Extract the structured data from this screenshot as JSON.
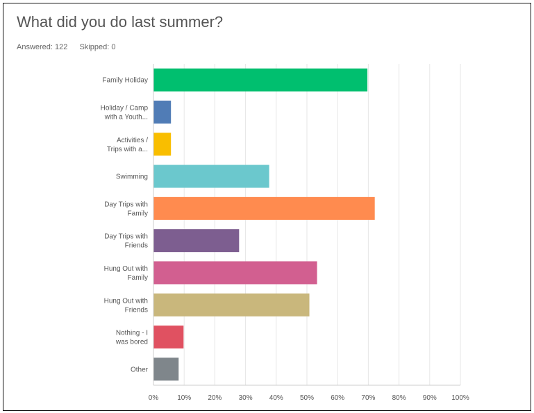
{
  "question": {
    "title": "What did you do last summer?",
    "answered_label": "Answered: 122",
    "skipped_label": "Skipped: 0"
  },
  "chart_data": {
    "type": "bar",
    "orientation": "horizontal",
    "title": "What did you do last summer?",
    "xlabel": "",
    "ylabel": "",
    "xlim": [
      0,
      100
    ],
    "x_unit": "%",
    "grid": true,
    "categories": [
      [
        "Family Holiday"
      ],
      [
        "Holiday / Camp",
        "with a Youth..."
      ],
      [
        "Activities /",
        "Trips with a..."
      ],
      [
        "Swimming"
      ],
      [
        "Day Trips with",
        "Family"
      ],
      [
        "Day Trips with",
        "Friends"
      ],
      [
        "Hung Out with",
        "Family"
      ],
      [
        "Hung Out with",
        "Friends"
      ],
      [
        "Nothing - I",
        "was bored"
      ],
      [
        "Other"
      ]
    ],
    "values": [
      69.7,
      5.7,
      5.7,
      37.7,
      72.1,
      27.9,
      53.3,
      50.8,
      9.8,
      8.2
    ],
    "colors": [
      "#00bf6f",
      "#507cb6",
      "#f9be00",
      "#6bc8cd",
      "#ff8b4f",
      "#7d5e90",
      "#d25f90",
      "#c9b77c",
      "#e05161",
      "#7f868b"
    ],
    "ticks": [
      "0%",
      "10%",
      "20%",
      "30%",
      "40%",
      "50%",
      "60%",
      "70%",
      "80%",
      "90%",
      "100%"
    ]
  }
}
